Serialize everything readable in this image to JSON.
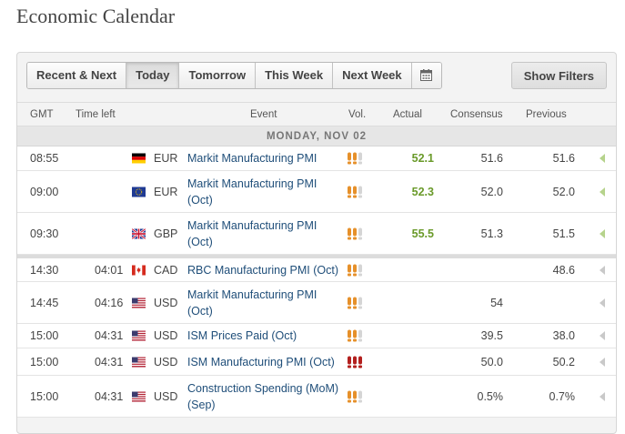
{
  "page_title": "Economic Calendar",
  "toolbar": {
    "buttons": [
      {
        "label": "Recent & Next",
        "active": false
      },
      {
        "label": "Today",
        "active": true
      },
      {
        "label": "Tomorrow",
        "active": false
      },
      {
        "label": "This Week",
        "active": false
      },
      {
        "label": "Next Week",
        "active": false
      }
    ],
    "calendar_icon": "calendar-icon",
    "show_filters_label": "Show Filters"
  },
  "columns": {
    "gmt": "GMT",
    "time_left": "Time left",
    "event": "Event",
    "vol": "Vol.",
    "actual": "Actual",
    "consensus": "Consensus",
    "previous": "Previous"
  },
  "day_label": "MONDAY, NOV 02",
  "colors": {
    "orange_volatility": "#e6902a",
    "red_volatility": "#b3201e",
    "actual_value": "#6a9a2a",
    "event_link": "#1f4e79"
  },
  "rows": [
    {
      "gmt": "08:55",
      "time_left": "",
      "flag": "flag-germany-icon",
      "currency": "EUR",
      "event": "Markit Manufacturing PMI",
      "volatility": "medium",
      "actual": "52.1",
      "consensus": "51.6",
      "previous": "51.6"
    },
    {
      "gmt": "09:00",
      "time_left": "",
      "flag": "flag-eu-icon",
      "currency": "EUR",
      "event": "Markit Manufacturing PMI (Oct)",
      "volatility": "medium",
      "actual": "52.3",
      "consensus": "52.0",
      "previous": "52.0"
    },
    {
      "gmt": "09:30",
      "time_left": "",
      "flag": "flag-uk-icon",
      "currency": "GBP",
      "event": "Markit Manufacturing PMI (Oct)",
      "volatility": "medium",
      "actual": "55.5",
      "consensus": "51.3",
      "previous": "51.5"
    },
    {
      "gmt": "14:30",
      "time_left": "04:01",
      "flag": "flag-canada-icon",
      "currency": "CAD",
      "event": "RBC Manufacturing PMI (Oct)",
      "volatility": "medium",
      "actual": "",
      "consensus": "",
      "previous": "48.6"
    },
    {
      "gmt": "14:45",
      "time_left": "04:16",
      "flag": "flag-us-icon",
      "currency": "USD",
      "event": "Markit Manufacturing PMI (Oct)",
      "volatility": "medium",
      "actual": "",
      "consensus": "54",
      "previous": ""
    },
    {
      "gmt": "15:00",
      "time_left": "04:31",
      "flag": "flag-us-icon",
      "currency": "USD",
      "event": "ISM Prices Paid (Oct)",
      "volatility": "medium",
      "actual": "",
      "consensus": "39.5",
      "previous": "38.0"
    },
    {
      "gmt": "15:00",
      "time_left": "04:31",
      "flag": "flag-us-icon",
      "currency": "USD",
      "event": "ISM Manufacturing PMI (Oct)",
      "volatility": "high",
      "actual": "",
      "consensus": "50.0",
      "previous": "50.2"
    },
    {
      "gmt": "15:00",
      "time_left": "04:31",
      "flag": "flag-us-icon",
      "currency": "USD",
      "event": "Construction Spending (MoM) (Sep)",
      "volatility": "medium",
      "actual": "",
      "consensus": "0.5%",
      "previous": "0.7%"
    }
  ]
}
